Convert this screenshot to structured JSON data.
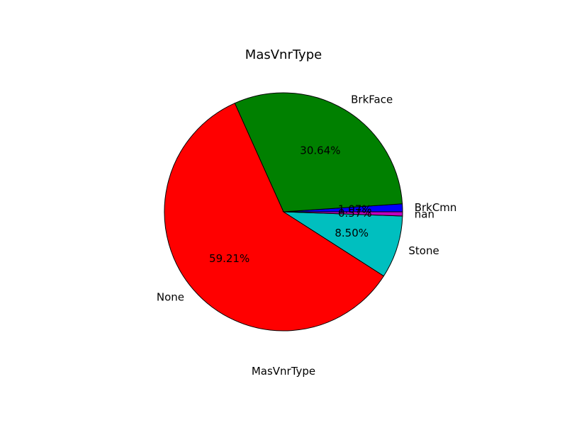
{
  "chart_data": {
    "type": "pie",
    "title": "MasVnrType",
    "xlabel": "MasVnrType",
    "ylabel": "",
    "legend": "none",
    "slices": [
      {
        "label": "BrkCmn",
        "pct_label": "1.07%",
        "value": 1.07,
        "color": "#0000ff"
      },
      {
        "label": "BrkFace",
        "pct_label": "30.64%",
        "value": 30.64,
        "color": "#008000"
      },
      {
        "label": "None",
        "pct_label": "59.21%",
        "value": 59.21,
        "color": "#ff0000"
      },
      {
        "label": "Stone",
        "pct_label": "8.50%",
        "value": 8.5,
        "color": "#00bfbf"
      },
      {
        "label": "nan",
        "pct_label": "0.57%",
        "value": 0.57,
        "color": "#bf00bf"
      }
    ]
  }
}
